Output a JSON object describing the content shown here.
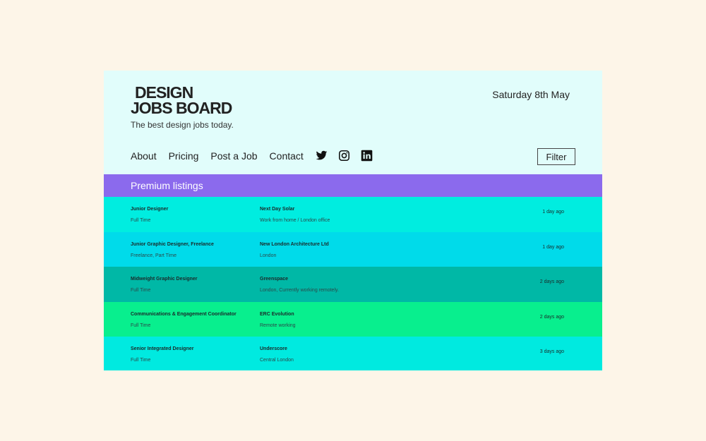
{
  "logo": {
    "line1": "DESIGN",
    "line2": "JOBS BOARD"
  },
  "tagline": "The best design jobs today.",
  "date": "Saturday 8th May",
  "nav": {
    "about": "About",
    "pricing": "Pricing",
    "post_job": "Post a Job",
    "contact": "Contact"
  },
  "social": [
    "twitter-icon",
    "instagram-icon",
    "linkedin-icon"
  ],
  "filter_label": "Filter",
  "premium_heading": "Premium listings",
  "colors": {
    "page_bg": "#fdf5e8",
    "header_bg": "#e1fdfb",
    "premium_bg": "#8b6aed",
    "row_colors": [
      "#00ede0",
      "#00dbea",
      "#00b8a6",
      "#08ef8e",
      "#00eae0"
    ]
  },
  "listings": [
    {
      "title": "Junior Designer",
      "type": "Full Time",
      "company": "Next Day Solar",
      "location": "Work from home / London office",
      "ago": "1 day ago"
    },
    {
      "title": "Junior Graphic Designer, Freelance",
      "type": "Freelance, Part Time",
      "company": "New London Architecture Ltd",
      "location": "London",
      "ago": "1 day ago"
    },
    {
      "title": "Midweight Graphic Designer",
      "type": "Full Time",
      "company": "Greenspace",
      "location": "London, Currently working remotely.",
      "ago": "2 days ago"
    },
    {
      "title": "Communications & Engagement Coordinator",
      "type": "Full Time",
      "company": "ERC Evolution",
      "location": "Remote working",
      "ago": "2 days ago"
    },
    {
      "title": "Senior Integrated Designer",
      "type": "Full Time",
      "company": "Underscore",
      "location": "Central London",
      "ago": "3 days ago"
    }
  ]
}
